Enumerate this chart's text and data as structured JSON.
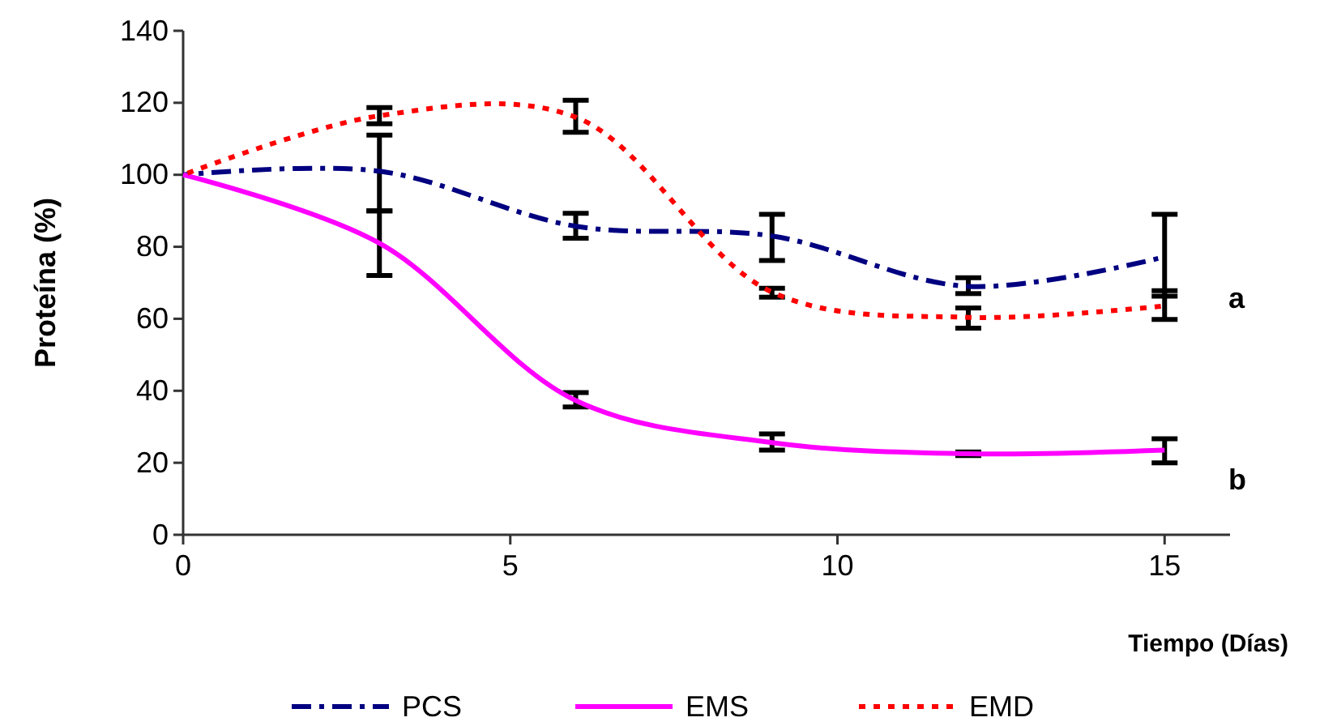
{
  "chart_data": {
    "type": "line",
    "xlabel": "Tiempo (Días)",
    "ylabel": "Proteína (%)",
    "x": [
      0,
      3,
      6,
      9,
      12,
      15
    ],
    "xlim": [
      0,
      16
    ],
    "xticks": [
      0,
      5,
      10,
      15
    ],
    "ylim": [
      0,
      140
    ],
    "yticks": [
      0,
      20,
      40,
      60,
      80,
      100,
      120,
      140
    ],
    "grid": false,
    "legend": "bottom",
    "marker": "none",
    "series": [
      {
        "name": "PCS",
        "color": "#000080",
        "line_style": "dashdot",
        "values": [
          100,
          101,
          85.7,
          83,
          69,
          77.2
        ],
        "errors": [
          null,
          [
            90,
            111
          ],
          [
            82.4,
            89.3
          ],
          [
            76.2,
            89
          ],
          [
            67,
            71.4
          ],
          [
            66.3,
            89
          ]
        ]
      },
      {
        "name": "EMS",
        "color": "#ff00ff",
        "line_style": "solid",
        "values": [
          100,
          81,
          37.3,
          25.6,
          22.5,
          23.5
        ],
        "errors": [
          null,
          [
            72,
            90
          ],
          [
            35.5,
            39.5
          ],
          [
            23.5,
            28
          ],
          [
            22,
            23
          ],
          [
            20,
            26.7
          ]
        ]
      },
      {
        "name": "EMD",
        "color": "#ff0000",
        "line_style": "dotted",
        "values": [
          100,
          116.4,
          116,
          67.4,
          60.4,
          63.6
        ],
        "errors": [
          null,
          [
            114.2,
            118.7
          ],
          [
            111.8,
            120.7
          ],
          [
            66,
            68.5
          ],
          [
            57.4,
            63
          ],
          [
            59.8,
            67.8
          ]
        ]
      }
    ],
    "annotations": [
      "a",
      "b"
    ]
  }
}
